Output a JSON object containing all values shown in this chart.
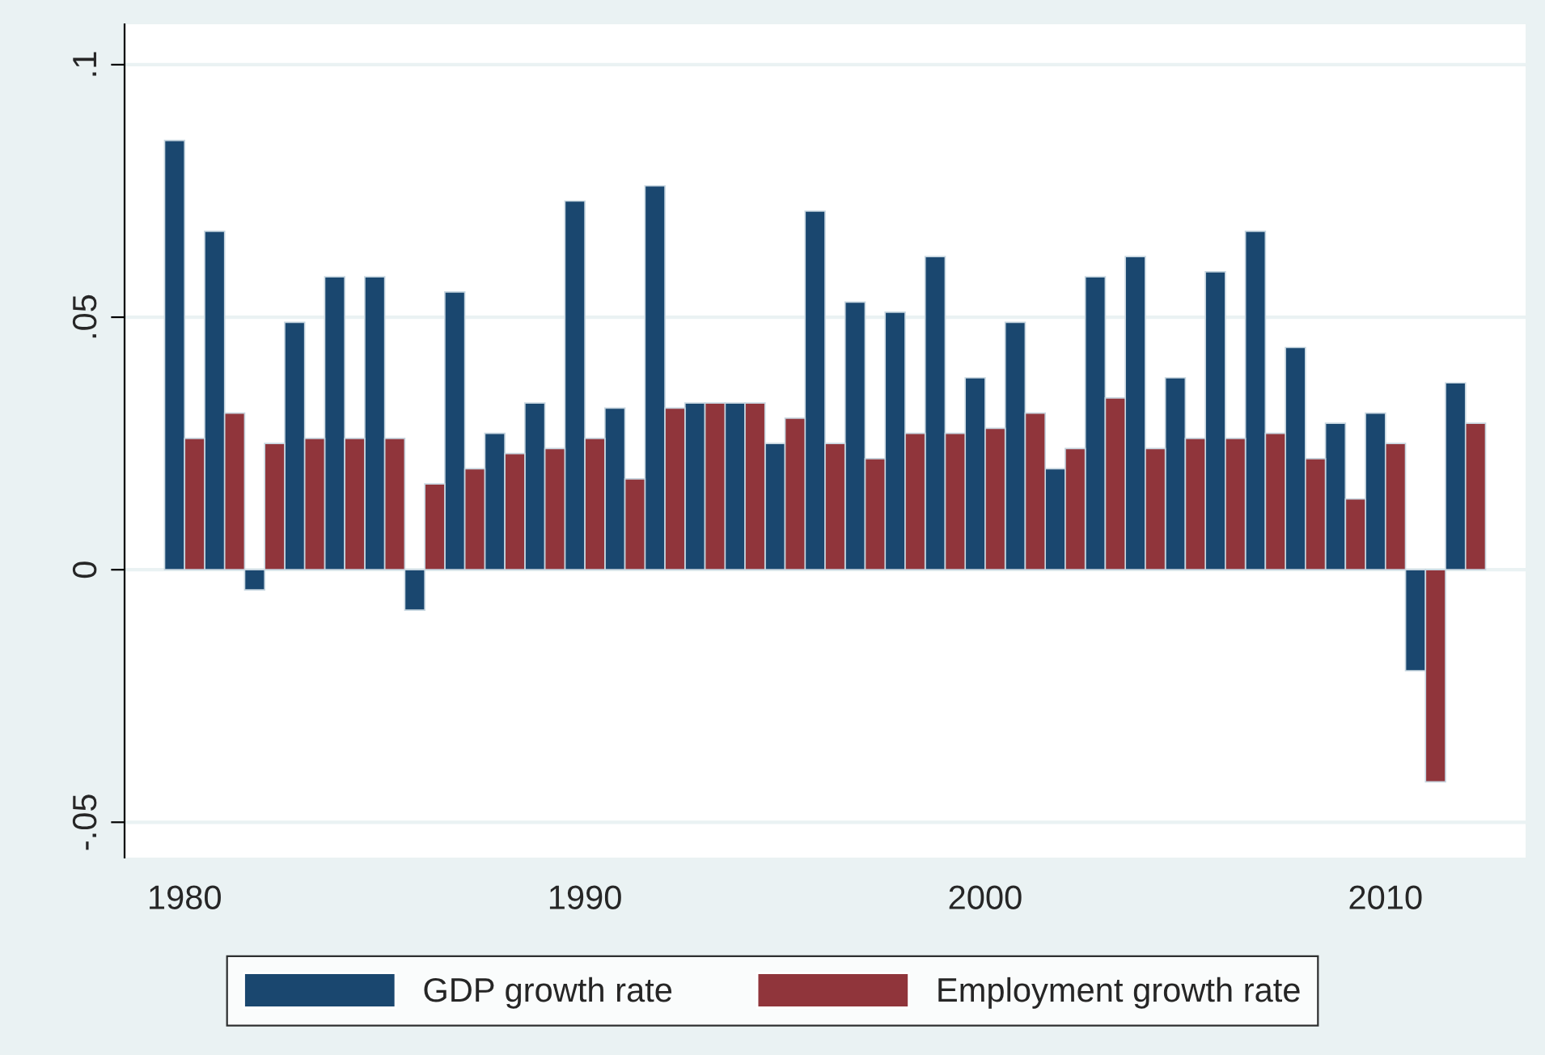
{
  "chart_data": {
    "type": "bar",
    "x": [
      1980,
      1981,
      1982,
      1983,
      1984,
      1985,
      1986,
      1987,
      1988,
      1989,
      1990,
      1991,
      1992,
      1993,
      1994,
      1995,
      1996,
      1997,
      1998,
      1999,
      2000,
      2001,
      2002,
      2003,
      2004,
      2005,
      2006,
      2007,
      2008,
      2009,
      2010,
      2011,
      2012
    ],
    "series": [
      {
        "name": "GDP growth rate",
        "color": "#1a476f",
        "values": [
          0.085,
          0.067,
          -0.004,
          0.049,
          0.058,
          0.058,
          -0.008,
          0.055,
          0.027,
          0.033,
          0.073,
          0.032,
          0.076,
          0.033,
          0.033,
          0.025,
          0.071,
          0.053,
          0.051,
          0.062,
          0.038,
          0.049,
          0.02,
          0.058,
          0.062,
          0.038,
          0.059,
          0.067,
          0.044,
          0.029,
          0.031,
          -0.02,
          0.037
        ]
      },
      {
        "name": "Employment growth rate",
        "color": "#90353b",
        "values": [
          0.026,
          0.031,
          0.025,
          0.026,
          0.026,
          0.026,
          0.017,
          0.02,
          0.023,
          0.024,
          0.026,
          0.018,
          0.032,
          0.033,
          0.033,
          0.03,
          0.025,
          0.022,
          0.027,
          0.027,
          0.028,
          0.031,
          0.024,
          0.034,
          0.024,
          0.026,
          0.026,
          0.027,
          0.022,
          0.014,
          0.025,
          -0.042,
          0.029
        ]
      }
    ],
    "xlim": [
      1978.5,
      2013.5
    ],
    "xticks": [
      1980,
      1990,
      2000,
      2010
    ],
    "ylim": [
      -0.057,
      0.108
    ],
    "yticks": [
      {
        "value": -0.05,
        "label": "-.05"
      },
      0,
      {
        "value": 0.05,
        "label": ".05"
      },
      {
        "value": 0.1,
        "label": ".1"
      }
    ],
    "grid": "y",
    "legend": "bottom"
  }
}
